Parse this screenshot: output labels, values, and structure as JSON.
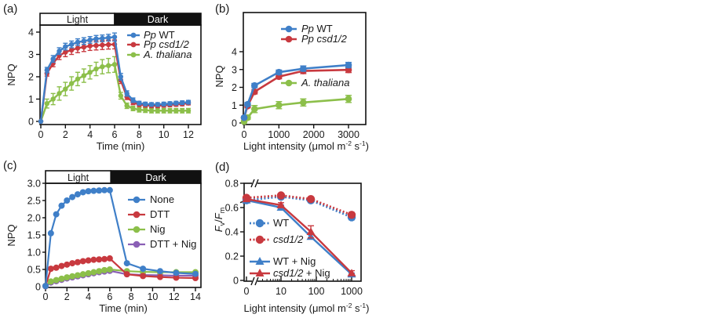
{
  "colors": {
    "blue": "#3f7fc8",
    "red": "#c8393f",
    "green": "#8cbf4a",
    "purple": "#8a5fb5",
    "black": "#111111"
  },
  "chart_data": [
    {
      "panel": "(a)",
      "type": "line",
      "bar_labels": {
        "light": "Light",
        "dark": "Dark"
      },
      "xlabel": "Time (min)",
      "ylabel": "NPQ",
      "xlim": [
        0,
        12
      ],
      "ylim": [
        0,
        4.4
      ],
      "xticks": [
        "0",
        "2",
        "4",
        "6",
        "8",
        "10",
        "12"
      ],
      "yticks": [
        "0",
        "1",
        "2",
        "3",
        "4"
      ],
      "light_period": [
        0,
        6
      ],
      "dark_period": [
        6,
        12
      ],
      "legend_position": "top-right",
      "series": [
        {
          "name_italic": "Pp",
          "name_rest": " WT",
          "color_key": "blue",
          "marker": "circle",
          "x": [
            0,
            0.5,
            1,
            1.5,
            2,
            2.5,
            3,
            3.5,
            4,
            4.5,
            5,
            5.5,
            6,
            6.5,
            7,
            7.5,
            8,
            8.5,
            9,
            9.5,
            10,
            10.5,
            11,
            11.5,
            12
          ],
          "y": [
            0,
            2.3,
            2.8,
            3.15,
            3.35,
            3.45,
            3.55,
            3.6,
            3.65,
            3.7,
            3.72,
            3.75,
            3.78,
            2.0,
            1.25,
            0.95,
            0.82,
            0.78,
            0.76,
            0.76,
            0.78,
            0.8,
            0.82,
            0.84,
            0.86
          ],
          "err": [
            0,
            0.12,
            0.15,
            0.15,
            0.15,
            0.15,
            0.15,
            0.15,
            0.15,
            0.15,
            0.15,
            0.15,
            0.18,
            0.15,
            0.12,
            0.1,
            0.08,
            0.08,
            0.08,
            0.08,
            0.08,
            0.08,
            0.08,
            0.08,
            0.08
          ]
        },
        {
          "name_italic": "Pp csd1/2",
          "name_rest": "",
          "color_key": "red",
          "marker": "circle",
          "x": [
            0,
            0.5,
            1,
            1.5,
            2,
            2.5,
            3,
            3.5,
            4,
            4.5,
            5,
            5.5,
            6,
            6.5,
            7,
            7.5,
            8,
            8.5,
            9,
            9.5,
            10,
            10.5,
            11,
            11.5,
            12
          ],
          "y": [
            0,
            2.15,
            2.6,
            2.95,
            3.1,
            3.2,
            3.28,
            3.33,
            3.38,
            3.4,
            3.42,
            3.44,
            3.45,
            1.85,
            1.1,
            0.85,
            0.75,
            0.72,
            0.7,
            0.7,
            0.72,
            0.74,
            0.76,
            0.78,
            0.82
          ],
          "err": [
            0,
            0.12,
            0.15,
            0.18,
            0.2,
            0.2,
            0.2,
            0.2,
            0.2,
            0.2,
            0.2,
            0.2,
            0.2,
            0.15,
            0.12,
            0.1,
            0.08,
            0.08,
            0.08,
            0.08,
            0.08,
            0.08,
            0.08,
            0.08,
            0.08
          ]
        },
        {
          "name_italic": "A. thaliana",
          "name_rest": "",
          "color_key": "green",
          "marker": "circle",
          "x": [
            0,
            0.5,
            1,
            1.5,
            2,
            2.5,
            3,
            3.5,
            4,
            4.5,
            5,
            5.5,
            6,
            6.5,
            7,
            7.5,
            8,
            8.5,
            9,
            9.5,
            10,
            10.5,
            11,
            11.5,
            12
          ],
          "y": [
            0,
            0.8,
            1.0,
            1.25,
            1.45,
            1.7,
            1.9,
            2.05,
            2.2,
            2.35,
            2.45,
            2.5,
            2.55,
            1.15,
            0.7,
            0.58,
            0.52,
            0.5,
            0.48,
            0.48,
            0.48,
            0.48,
            0.48,
            0.48,
            0.48
          ],
          "err": [
            0,
            0.2,
            0.25,
            0.3,
            0.3,
            0.3,
            0.3,
            0.3,
            0.3,
            0.3,
            0.32,
            0.32,
            0.35,
            0.15,
            0.12,
            0.1,
            0.1,
            0.1,
            0.1,
            0.1,
            0.1,
            0.1,
            0.1,
            0.1,
            0.1
          ]
        }
      ]
    },
    {
      "panel": "(b)",
      "type": "line",
      "xlabel": "Light intensity (μmol m",
      "xlabel_sup1": "-2",
      "xlabel_mid": " s",
      "xlabel_sup2": "-1",
      "xlabel_end": ")",
      "ylabel": "NPQ",
      "xlim": [
        0,
        3300
      ],
      "ylim": [
        0,
        5.0
      ],
      "xticks": [
        "0",
        "1000",
        "2000",
        "3000"
      ],
      "yticks": [
        "0",
        "1",
        "2",
        "3",
        "4"
      ],
      "legend_position": "top-right",
      "series": [
        {
          "name_italic": "Pp",
          "name_rest": " WT",
          "color_key": "blue",
          "x": [
            0,
            100,
            300,
            1000,
            1700,
            3000
          ],
          "y": [
            0.3,
            1.05,
            2.1,
            2.85,
            3.05,
            3.25
          ],
          "err": [
            0.05,
            0.1,
            0.12,
            0.12,
            0.15,
            0.15
          ]
        },
        {
          "name_italic": "Pp csd1/2",
          "name_rest": "",
          "color_key": "red",
          "x": [
            0,
            100,
            300,
            1000,
            1700,
            3000
          ],
          "y": [
            0.3,
            0.95,
            1.75,
            2.6,
            2.92,
            2.98
          ],
          "err": [
            0.05,
            0.1,
            0.12,
            0.12,
            0.15,
            0.15
          ]
        },
        {
          "name_italic": "A. thaliana",
          "name_rest": "",
          "color_key": "green",
          "x": [
            0,
            100,
            300,
            1000,
            1700,
            3000
          ],
          "y": [
            0.08,
            0.3,
            0.78,
            1.0,
            1.15,
            1.35
          ],
          "err": [
            0.03,
            0.1,
            0.2,
            0.2,
            0.2,
            0.2
          ]
        }
      ]
    },
    {
      "panel": "(c)",
      "type": "line",
      "bar_labels": {
        "light": "Light",
        "dark": "Dark"
      },
      "xlabel": "Time (min)",
      "ylabel": "NPQ",
      "xlim": [
        0,
        14.5
      ],
      "ylim": [
        0,
        3.0
      ],
      "xticks": [
        "0",
        "2",
        "4",
        "6",
        "8",
        "10",
        "12",
        "14"
      ],
      "yticks": [
        "0",
        "0.5",
        "1.0",
        "1.5",
        "2.0",
        "2.5",
        "3.0"
      ],
      "light_period": [
        0,
        6
      ],
      "dark_period": [
        6,
        14.5
      ],
      "legend_position": "top-right",
      "series": [
        {
          "name": "None",
          "color_key": "blue",
          "x": [
            0,
            0.5,
            1,
            1.5,
            2,
            2.5,
            3,
            3.5,
            4,
            4.5,
            5,
            5.5,
            6,
            7.6,
            9.1,
            10.7,
            12.2,
            14
          ],
          "y": [
            0.02,
            1.55,
            2.1,
            2.35,
            2.5,
            2.6,
            2.68,
            2.74,
            2.77,
            2.78,
            2.79,
            2.8,
            2.8,
            0.68,
            0.52,
            0.45,
            0.4,
            0.37
          ]
        },
        {
          "name": "DTT",
          "color_key": "red",
          "x": [
            0,
            0.5,
            1,
            1.5,
            2,
            2.5,
            3,
            3.5,
            4,
            4.5,
            5,
            5.5,
            6,
            7.6,
            9.1,
            10.7,
            12.2,
            14
          ],
          "y": [
            0.02,
            0.52,
            0.55,
            0.6,
            0.64,
            0.68,
            0.71,
            0.74,
            0.76,
            0.78,
            0.79,
            0.8,
            0.82,
            0.36,
            0.31,
            0.28,
            0.26,
            0.25
          ]
        },
        {
          "name": "Nig",
          "color_key": "green",
          "x": [
            0,
            0.5,
            1,
            1.5,
            2,
            2.5,
            3,
            3.5,
            4,
            4.5,
            5,
            5.5,
            6,
            7.6,
            9.1,
            10.7,
            12.2,
            14
          ],
          "y": [
            0.02,
            0.15,
            0.19,
            0.23,
            0.27,
            0.3,
            0.33,
            0.36,
            0.39,
            0.42,
            0.45,
            0.48,
            0.5,
            0.45,
            0.43,
            0.42,
            0.42,
            0.42
          ]
        },
        {
          "name": "DTT + Nig",
          "color_key": "purple",
          "x": [
            0,
            0.5,
            1,
            1.5,
            2,
            2.5,
            3,
            3.5,
            4,
            4.5,
            5,
            5.5,
            6,
            7.6,
            9.1,
            10.7,
            12.2,
            14
          ],
          "y": [
            0.01,
            0.12,
            0.16,
            0.2,
            0.24,
            0.27,
            0.3,
            0.33,
            0.36,
            0.39,
            0.42,
            0.44,
            0.46,
            0.36,
            0.34,
            0.33,
            0.32,
            0.32
          ]
        }
      ]
    },
    {
      "panel": "(d)",
      "type": "line",
      "xlabel": "Light intensity (μmol m",
      "xlabel_sup1": "-2",
      "xlabel_mid": " s",
      "xlabel_sup2": "-1",
      "xlabel_end": ")",
      "ylabel_main": "F",
      "ylabel_sub1": "v",
      "ylabel_slash": "/",
      "ylabel_main2": "F",
      "ylabel_sub2": "m",
      "xscale": "log (broken axis at 0)",
      "xticks": [
        "0",
        "10",
        "100",
        "1000"
      ],
      "yticks": [
        "0",
        "0.2",
        "0.4",
        "0.6",
        "0.8"
      ],
      "ylim": [
        0,
        0.8
      ],
      "legend_position": "center-left",
      "series": [
        {
          "name": "WT",
          "italic": false,
          "color_key": "blue",
          "style": "dotted",
          "marker": "circle",
          "x": [
            0,
            10,
            70,
            1000
          ],
          "y": [
            0.66,
            0.69,
            0.66,
            0.52
          ],
          "err": [
            0.01,
            0.01,
            0.01,
            0.02
          ]
        },
        {
          "name": "csd1/2",
          "italic": true,
          "color_key": "red",
          "style": "dotted",
          "marker": "circle",
          "x": [
            0,
            10,
            70,
            1000
          ],
          "y": [
            0.68,
            0.7,
            0.67,
            0.54
          ],
          "err": [
            0.01,
            0.01,
            0.01,
            0.02
          ]
        },
        {
          "name": "WT + Nig",
          "italic": false,
          "color_key": "blue",
          "style": "solid",
          "marker": "triangle",
          "x": [
            0,
            10,
            70,
            1000
          ],
          "y": [
            0.66,
            0.6,
            0.36,
            0.05
          ],
          "err": [
            0.01,
            0.02,
            0.02,
            0.01
          ]
        },
        {
          "name": "csd1/2 + Nig",
          "italic_part": "csd1/2",
          "rest": " + Nig",
          "color_key": "red",
          "style": "solid",
          "marker": "triangle",
          "x": [
            0,
            10,
            70,
            1000
          ],
          "y": [
            0.67,
            0.62,
            0.4,
            0.06
          ],
          "err": [
            0.01,
            0.02,
            0.05,
            0.02
          ]
        }
      ]
    }
  ],
  "labels": {
    "a": "(a)",
    "b": "(b)",
    "c": "(c)",
    "d": "(d)"
  }
}
